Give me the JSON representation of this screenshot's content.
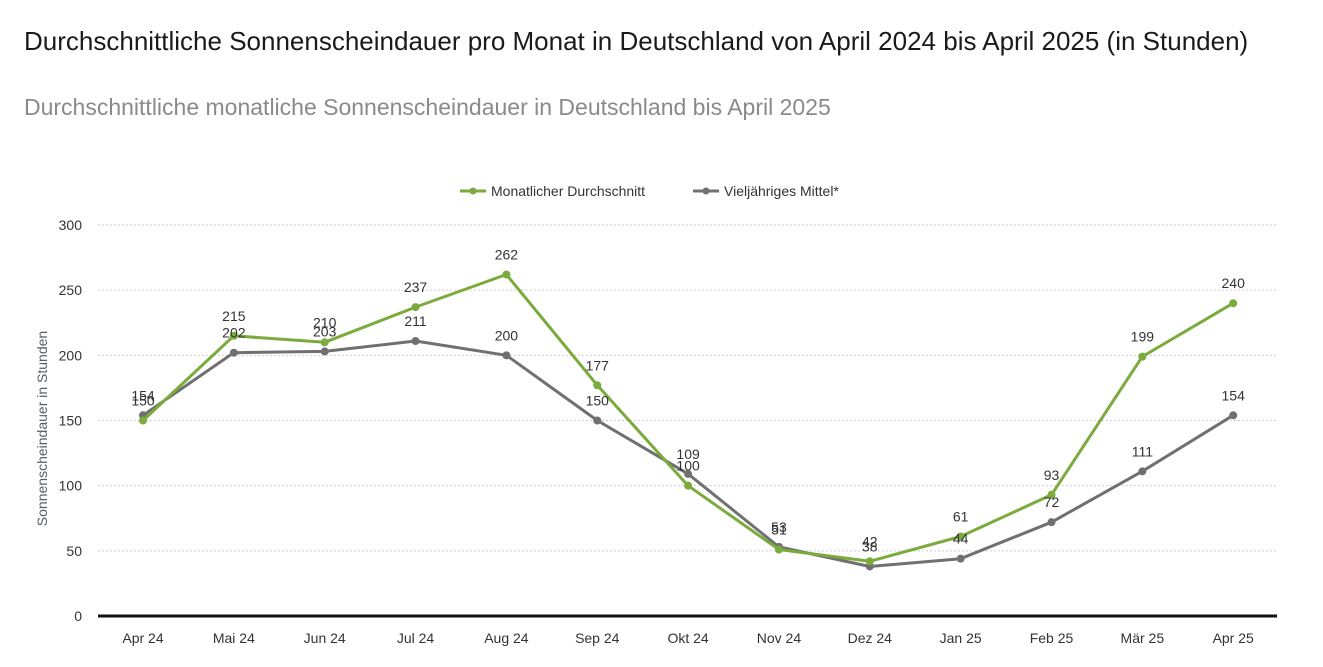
{
  "header": {
    "title": "Durchschnittliche Sonnenscheindauer pro Monat in Deutschland von April 2024 bis April 2025 (in Stunden)",
    "subtitle": "Durchschnittliche monatliche Sonnenscheindauer in Deutschland bis April 2025"
  },
  "colors": {
    "green": "#7aab3c",
    "gray": "#707070",
    "grid": "#bdbdbd",
    "axis": "#111111"
  },
  "chart_data": {
    "type": "line",
    "categories": [
      "Apr 24",
      "Mai 24",
      "Jun 24",
      "Jul 24",
      "Aug 24",
      "Sep 24",
      "Okt 24",
      "Nov 24",
      "Dez 24",
      "Jan 25",
      "Feb 25",
      "Mär 25",
      "Apr 25"
    ],
    "series": [
      {
        "name": "Monatlicher Durchschnitt",
        "color": "#7aab3c",
        "values": [
          150,
          215,
          210,
          237,
          262,
          177,
          100,
          51,
          42,
          61,
          93,
          199,
          240
        ]
      },
      {
        "name": "Vieljähriges Mittel*",
        "color": "#707070",
        "values": [
          154,
          202,
          203,
          211,
          200,
          150,
          109,
          53,
          38,
          44,
          72,
          111,
          154
        ]
      }
    ],
    "ylabel": "Sonnenscheindauer in Stunden",
    "ylim": [
      0,
      300
    ],
    "yticks": [
      0,
      50,
      100,
      150,
      200,
      250,
      300
    ],
    "grid": true,
    "legend": "top-center"
  }
}
